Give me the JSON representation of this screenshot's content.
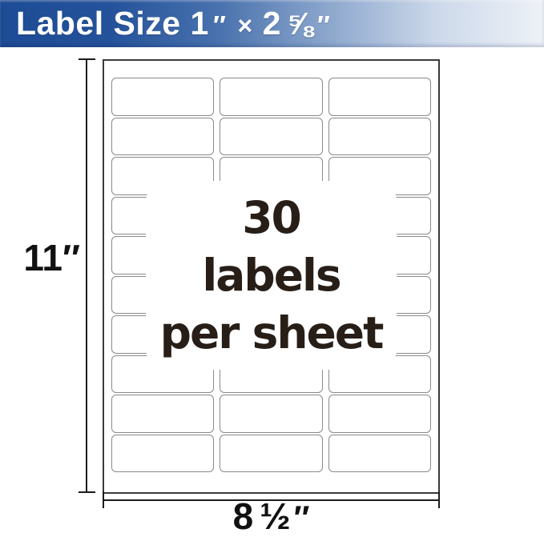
{
  "banner": {
    "prefix": "Label Size",
    "width_value": "1",
    "quote1": "″",
    "times": "×",
    "height_whole": "2",
    "height_fraction": "⅝",
    "quote2": "″",
    "text_color": "#ffffff",
    "gradient_stops": [
      "#1d4b95",
      "#24529a",
      "#4871ad",
      "#8ba6cc",
      "#ccd8ea",
      "#eef2f7"
    ]
  },
  "sheet": {
    "grid": {
      "rows": 10,
      "cols": 3
    },
    "background": "#ffffff",
    "border_color": "#3a3a3a",
    "cell_border_color": "#8a8a8a"
  },
  "overlay": {
    "lines": [
      "30",
      "labels",
      "per sheet"
    ],
    "text_color": "#281e18",
    "background": "#ffffff"
  },
  "dimensions": {
    "height_label": "11″",
    "width_number": "8",
    "width_fraction": "½",
    "width_quote": "″",
    "line_color": "#1c1c1c",
    "text_color": "#111111"
  }
}
